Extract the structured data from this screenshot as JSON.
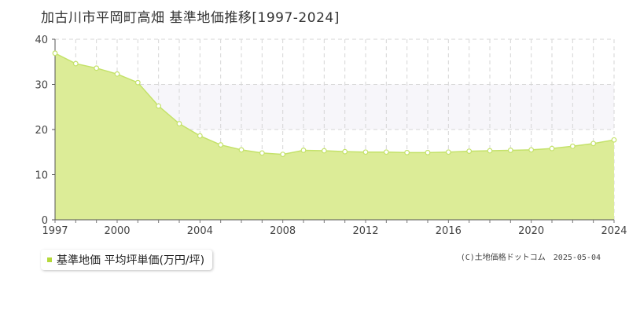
{
  "title": "加古川市平岡町高畑 基準地価推移[1997-2024]",
  "legend": {
    "label": "基準地価 平均坪単価(万円/坪)"
  },
  "credit": {
    "source": "(C)土地価格ドットコム",
    "date": "2025-05-04"
  },
  "colors": {
    "fill": "#dcec97",
    "line": "#c4e26a",
    "band": "#f7f6fa",
    "grid": "#d6d6d6",
    "legend_swatch": "#b5d93a"
  },
  "chart_data": {
    "type": "area",
    "title": "加古川市平岡町高畑 基準地価推移[1997-2024]",
    "xlabel": "",
    "ylabel": "",
    "xlim": [
      1997,
      2024
    ],
    "ylim": [
      0,
      40
    ],
    "yticks": [
      0,
      10,
      20,
      30,
      40
    ],
    "xticks": [
      1997,
      2000,
      2004,
      2008,
      2012,
      2016,
      2020,
      2024
    ],
    "highlight_band": [
      20,
      30
    ],
    "grid": true,
    "legend_position": "bottom-left",
    "series": [
      {
        "name": "基準地価 平均坪単価(万円/坪)",
        "x": [
          1997,
          1998,
          1999,
          2000,
          2001,
          2002,
          2003,
          2004,
          2005,
          2006,
          2007,
          2008,
          2009,
          2010,
          2011,
          2012,
          2013,
          2014,
          2015,
          2016,
          2017,
          2018,
          2019,
          2020,
          2021,
          2022,
          2023,
          2024
        ],
        "values": [
          36.9,
          34.6,
          33.6,
          32.3,
          30.4,
          25.2,
          21.3,
          18.6,
          16.6,
          15.5,
          14.8,
          14.5,
          15.4,
          15.3,
          15.1,
          15.0,
          15.0,
          14.9,
          14.9,
          15.0,
          15.2,
          15.3,
          15.4,
          15.5,
          15.8,
          16.3,
          16.9,
          17.7
        ]
      }
    ]
  }
}
